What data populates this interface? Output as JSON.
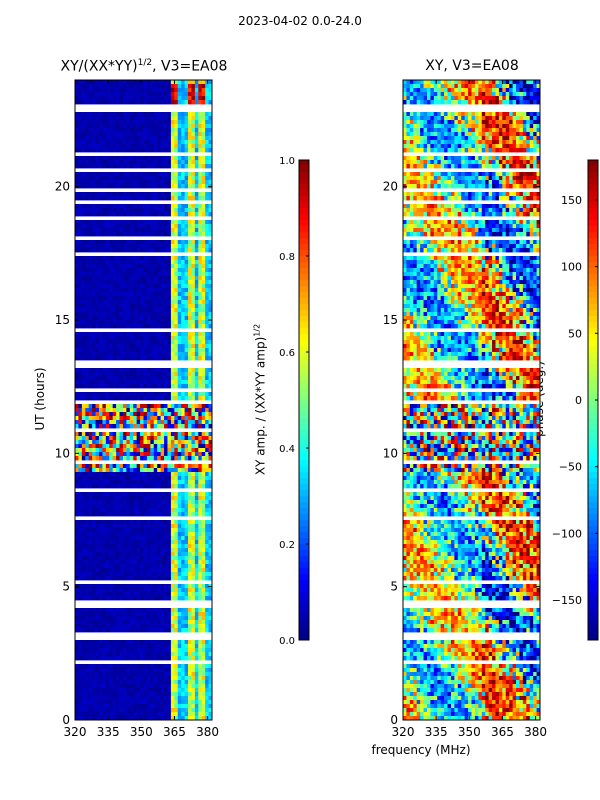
{
  "suptitle": "2023-04-02 0.0-24.0",
  "left_panel": {
    "title": "XY/(XX*YY)",
    "title_sup": "1/2",
    "title_suffix": ", V3=EA08"
  },
  "right_panel": {
    "title": "XY, V3=EA08"
  },
  "axes": {
    "ylabel": "UT (hours)",
    "xlabel": "frequency (MHz)"
  },
  "colorbars": {
    "amp_label": "XY amp. / (XX*YY amp)",
    "amp_label_sup": "1/2",
    "phase_label": "phase (deg.)"
  },
  "chart_data": [
    {
      "type": "heatmap",
      "id": "amplitude",
      "title": "XY/(XX*YY)^1/2, V3=EA08",
      "xlabel": "",
      "ylabel": "UT (hours)",
      "xlim": [
        320,
        382
      ],
      "ylim": [
        0,
        24
      ],
      "xticks": [
        320,
        335,
        350,
        365,
        380
      ],
      "yticks": [
        0,
        5,
        10,
        15,
        20
      ],
      "colormap": "jet",
      "clim": [
        0.0,
        1.0
      ],
      "colorbar_ticks": [
        "0.0",
        "0.2",
        "0.4",
        "0.6",
        "0.8",
        "1.0"
      ],
      "colorbar_label": "XY amp. / (XX*YY amp)^1/2"
    },
    {
      "type": "heatmap",
      "id": "phase",
      "title": "XY, V3=EA08",
      "xlabel": "frequency (MHz)",
      "ylabel": "",
      "xlim": [
        320,
        382
      ],
      "ylim": [
        0,
        24
      ],
      "xticks": [
        320,
        335,
        350,
        365,
        380
      ],
      "yticks": [
        0,
        5,
        10,
        15,
        20
      ],
      "colormap": "jet",
      "clim": [
        -180,
        180
      ],
      "colorbar_ticks": [
        "-150",
        "-100",
        "-50",
        "0",
        "50",
        "100",
        "150"
      ],
      "colorbar_label": "phase (deg.)"
    }
  ]
}
